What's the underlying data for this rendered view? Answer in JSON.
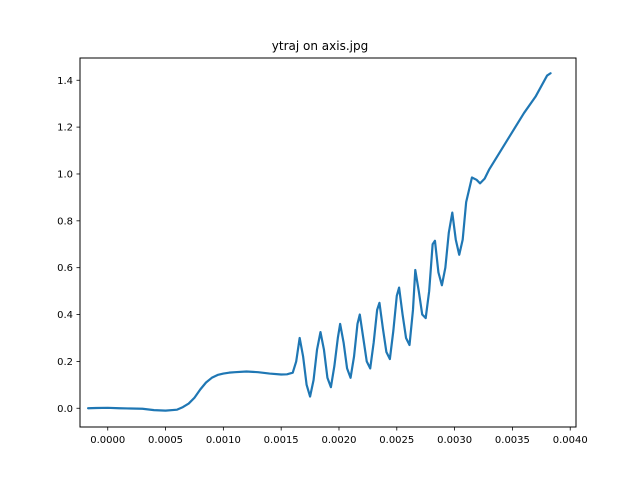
{
  "chart_data": {
    "type": "line",
    "title": "ytraj on axis.jpg",
    "xlabel": "",
    "ylabel": "",
    "xlim": [
      -0.00024,
      0.00405
    ],
    "ylim": [
      -0.08,
      1.495
    ],
    "x_ticks": [
      0.0,
      0.0005,
      0.001,
      0.0015,
      0.002,
      0.0025,
      0.003,
      0.0035,
      0.004
    ],
    "x_tick_labels": [
      "0.0000",
      "0.0005",
      "0.0010",
      "0.0015",
      "0.0020",
      "0.0025",
      "0.0030",
      "0.0035",
      "0.0040"
    ],
    "y_ticks": [
      0.0,
      0.2,
      0.4,
      0.6,
      0.8,
      1.0,
      1.2,
      1.4
    ],
    "y_tick_labels": [
      "0.0",
      "0.2",
      "0.4",
      "0.6",
      "0.8",
      "1.0",
      "1.2",
      "1.4"
    ],
    "grid": false,
    "colors": {
      "line": "#1f77b4",
      "axes": "#000000",
      "background": "#ffffff"
    },
    "series": [
      {
        "points": [
          [
            -0.00017,
            0.0
          ],
          [
            -0.0001,
            0.001
          ],
          [
            0.0,
            0.002
          ],
          [
            0.0001,
            0.0
          ],
          [
            0.0002,
            -0.001
          ],
          [
            0.0003,
            -0.002
          ],
          [
            0.0004,
            -0.008
          ],
          [
            0.0005,
            -0.01
          ],
          [
            0.0006,
            -0.006
          ],
          [
            0.00065,
            0.005
          ],
          [
            0.0007,
            0.02
          ],
          [
            0.00075,
            0.045
          ],
          [
            0.0008,
            0.08
          ],
          [
            0.00085,
            0.11
          ],
          [
            0.0009,
            0.13
          ],
          [
            0.00095,
            0.142
          ],
          [
            0.001,
            0.148
          ],
          [
            0.00105,
            0.152
          ],
          [
            0.0011,
            0.154
          ],
          [
            0.0012,
            0.157
          ],
          [
            0.0013,
            0.154
          ],
          [
            0.0014,
            0.148
          ],
          [
            0.0015,
            0.144
          ],
          [
            0.00155,
            0.145
          ],
          [
            0.0016,
            0.152
          ],
          [
            0.00163,
            0.2
          ],
          [
            0.00166,
            0.3
          ],
          [
            0.00169,
            0.22
          ],
          [
            0.00172,
            0.1
          ],
          [
            0.00175,
            0.05
          ],
          [
            0.00178,
            0.12
          ],
          [
            0.00181,
            0.25
          ],
          [
            0.00184,
            0.325
          ],
          [
            0.00187,
            0.25
          ],
          [
            0.0019,
            0.13
          ],
          [
            0.00193,
            0.09
          ],
          [
            0.00196,
            0.18
          ],
          [
            0.00199,
            0.3
          ],
          [
            0.00201,
            0.36
          ],
          [
            0.00204,
            0.28
          ],
          [
            0.00207,
            0.17
          ],
          [
            0.0021,
            0.13
          ],
          [
            0.00213,
            0.22
          ],
          [
            0.00216,
            0.36
          ],
          [
            0.00218,
            0.4
          ],
          [
            0.00221,
            0.3
          ],
          [
            0.00224,
            0.2
          ],
          [
            0.00227,
            0.17
          ],
          [
            0.0023,
            0.28
          ],
          [
            0.00233,
            0.42
          ],
          [
            0.00235,
            0.45
          ],
          [
            0.00238,
            0.34
          ],
          [
            0.00241,
            0.24
          ],
          [
            0.00244,
            0.21
          ],
          [
            0.00247,
            0.33
          ],
          [
            0.0025,
            0.48
          ],
          [
            0.00252,
            0.515
          ],
          [
            0.00255,
            0.4
          ],
          [
            0.00258,
            0.3
          ],
          [
            0.00261,
            0.27
          ],
          [
            0.00264,
            0.42
          ],
          [
            0.00266,
            0.59
          ],
          [
            0.00269,
            0.5
          ],
          [
            0.00272,
            0.4
          ],
          [
            0.00275,
            0.385
          ],
          [
            0.00278,
            0.5
          ],
          [
            0.00281,
            0.7
          ],
          [
            0.00283,
            0.715
          ],
          [
            0.00286,
            0.58
          ],
          [
            0.00289,
            0.525
          ],
          [
            0.00292,
            0.6
          ],
          [
            0.00295,
            0.75
          ],
          [
            0.00298,
            0.835
          ],
          [
            0.00301,
            0.72
          ],
          [
            0.00304,
            0.655
          ],
          [
            0.00307,
            0.72
          ],
          [
            0.0031,
            0.88
          ],
          [
            0.00315,
            0.985
          ],
          [
            0.00319,
            0.975
          ],
          [
            0.00322,
            0.96
          ],
          [
            0.00326,
            0.98
          ],
          [
            0.0033,
            1.02
          ],
          [
            0.0034,
            1.1
          ],
          [
            0.0035,
            1.18
          ],
          [
            0.0036,
            1.26
          ],
          [
            0.0037,
            1.33
          ],
          [
            0.0038,
            1.42
          ],
          [
            0.00383,
            1.43
          ]
        ]
      }
    ]
  }
}
